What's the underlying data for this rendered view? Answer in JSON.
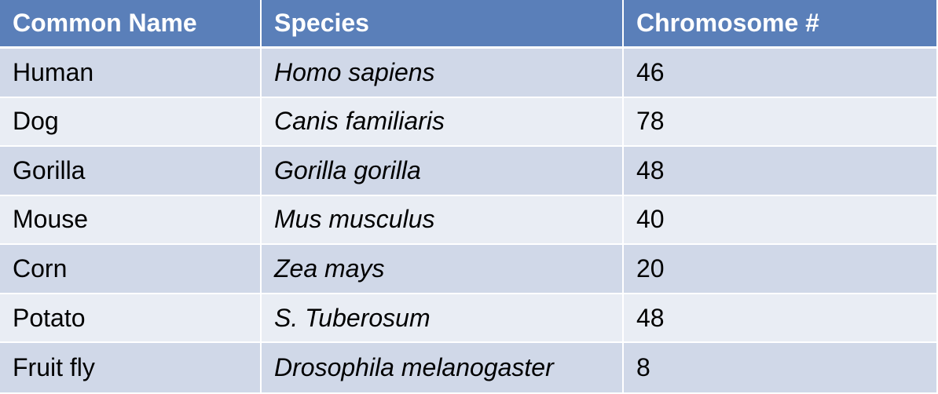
{
  "table": {
    "headers": [
      "Common Name",
      "Species",
      "Chromosome #"
    ],
    "rows": [
      {
        "common_name": "Human",
        "species": "Homo sapiens",
        "chromosomes": "46"
      },
      {
        "common_name": "Dog",
        "species": "Canis familiaris",
        "chromosomes": "78"
      },
      {
        "common_name": "Gorilla",
        "species": "Gorilla gorilla",
        "chromosomes": "48"
      },
      {
        "common_name": "Mouse",
        "species": "Mus musculus",
        "chromosomes": "40"
      },
      {
        "common_name": "Corn",
        "species": "Zea mays",
        "chromosomes": "20"
      },
      {
        "common_name": "Potato",
        "species": "S. Tuberosum",
        "chromosomes": "48"
      },
      {
        "common_name": "Fruit fly",
        "species": "Drosophila melanogaster",
        "chromosomes": "8"
      }
    ]
  },
  "colors": {
    "header_bg": "#5a7fb9",
    "row_dark": "#d0d8e8",
    "row_light": "#e9edf4"
  }
}
